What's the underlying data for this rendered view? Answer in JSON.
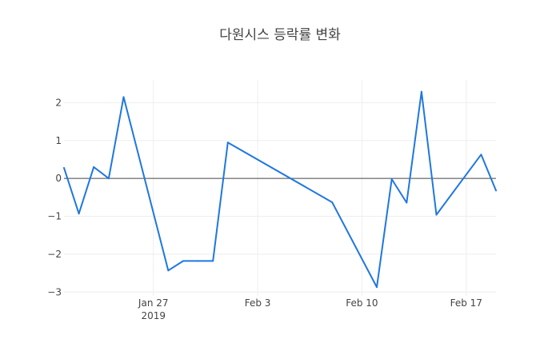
{
  "chart_data": {
    "type": "line",
    "title": "다원시스 등락률 변화",
    "xlabel": "",
    "ylabel": "",
    "x_ticks": [
      {
        "date": "2019-01-27",
        "label": "Jan 27",
        "sublabel": "2019"
      },
      {
        "date": "2019-02-03",
        "label": "Feb 3",
        "sublabel": ""
      },
      {
        "date": "2019-02-10",
        "label": "Feb 10",
        "sublabel": ""
      },
      {
        "date": "2019-02-17",
        "label": "Feb 17",
        "sublabel": ""
      }
    ],
    "y_ticks": [
      {
        "value": 2,
        "label": "2"
      },
      {
        "value": 1,
        "label": "1"
      },
      {
        "value": 0,
        "label": "0"
      },
      {
        "value": -1,
        "label": "−1"
      },
      {
        "value": -2,
        "label": "−2"
      },
      {
        "value": -3,
        "label": "−3"
      }
    ],
    "xlim": [
      "2019-01-21",
      "2019-02-19"
    ],
    "ylim": [
      -3.1,
      2.6
    ],
    "grid": true,
    "line_color": "#1f77e0",
    "series": [
      {
        "x": [
          "2019-01-21",
          "2019-01-22",
          "2019-01-23",
          "2019-01-24",
          "2019-01-25",
          "2019-01-28",
          "2019-01-29",
          "2019-01-30",
          "2019-01-31",
          "2019-02-01",
          "2019-02-08",
          "2019-02-11",
          "2019-02-12",
          "2019-02-13",
          "2019-02-14",
          "2019-02-15",
          "2019-02-18",
          "2019-02-19"
        ],
        "y": [
          0.28,
          -0.93,
          0.3,
          0.0,
          2.15,
          -2.43,
          -2.18,
          -2.18,
          -2.18,
          0.95,
          -0.63,
          -2.87,
          -0.02,
          -0.64,
          2.29,
          -0.96,
          0.63,
          -0.32
        ]
      }
    ]
  }
}
